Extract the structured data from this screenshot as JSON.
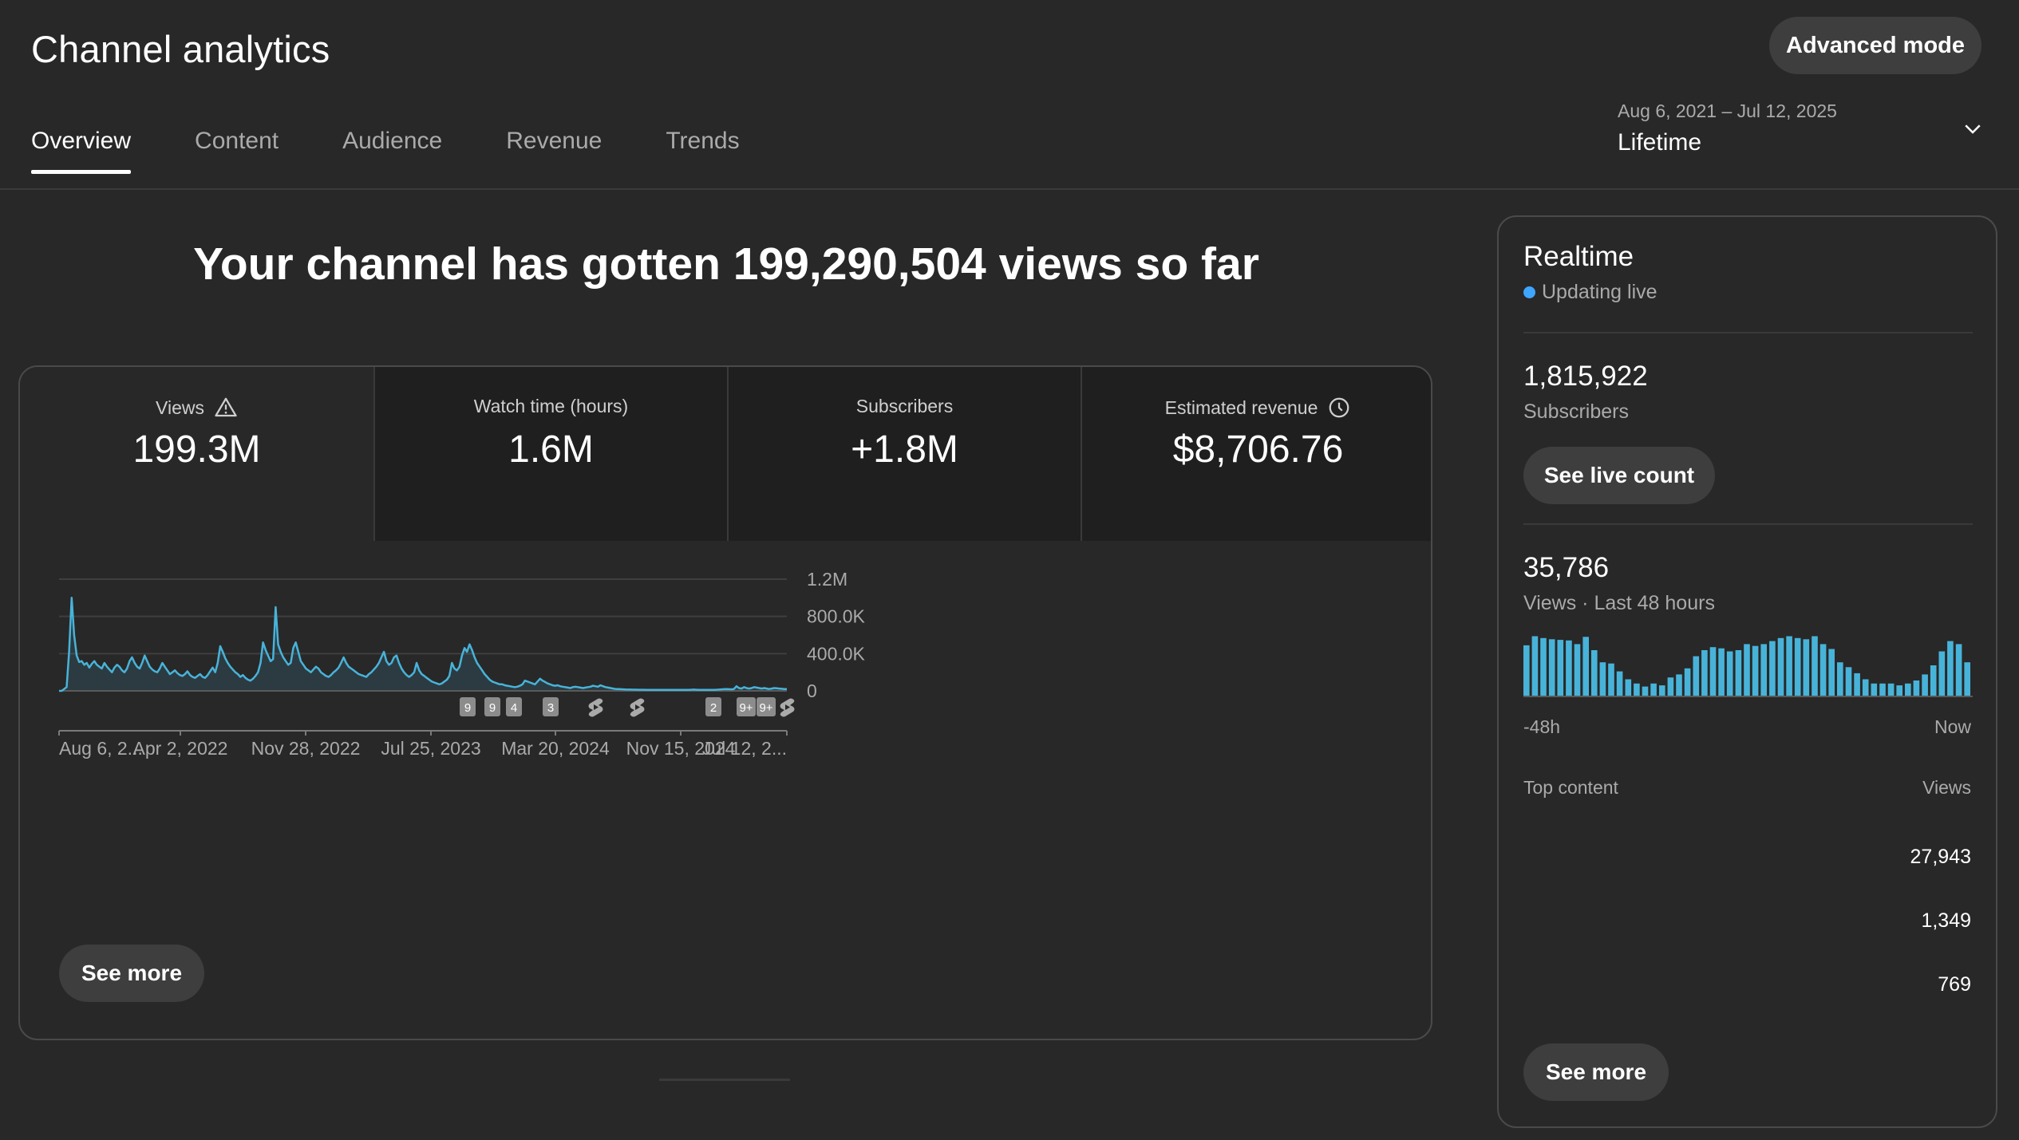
{
  "header": {
    "title": "Channel analytics",
    "advanced_mode_label": "Advanced mode"
  },
  "tabs": [
    {
      "label": "Overview",
      "active": true
    },
    {
      "label": "Content",
      "active": false
    },
    {
      "label": "Audience",
      "active": false
    },
    {
      "label": "Revenue",
      "active": false
    },
    {
      "label": "Trends",
      "active": false
    }
  ],
  "date_picker": {
    "range": "Aug 6, 2021 – Jul 12, 2025",
    "label": "Lifetime"
  },
  "headline": "Your channel has gotten 199,290,504 views so far",
  "metrics": [
    {
      "label": "Views",
      "value": "199.3M",
      "icon": "warning-icon"
    },
    {
      "label": "Watch time (hours)",
      "value": "1.6M"
    },
    {
      "label": "Subscribers",
      "value": "+1.8M"
    },
    {
      "label": "Estimated revenue",
      "value": "$8,706.76",
      "icon": "clock-icon"
    }
  ],
  "see_more_label": "See more",
  "colors": {
    "accent": "#3ea6ff",
    "series": "#48b3d9",
    "background": "#282828",
    "tile_inactive": "#1f1f1f",
    "button": "#3e3e3e"
  },
  "chart_data": {
    "type": "line",
    "title": "",
    "xlabel": "",
    "ylabel": "",
    "x_tick_labels": [
      "Aug 6, 2...",
      "Apr 2, 2022",
      "Nov 28, 2022",
      "Jul 25, 2023",
      "Mar 20, 2024",
      "Nov 15, 2024",
      "Jul 12, 2..."
    ],
    "y_tick_labels": [
      "0",
      "400.0K",
      "800.0K",
      "1.2M"
    ],
    "ylim": [
      0,
      1200000
    ],
    "grid": true,
    "series": [
      {
        "values": [
          0,
          0,
          20000,
          40000,
          420000,
          1000000,
          600000,
          380000,
          310000,
          320000,
          280000,
          300000,
          250000,
          290000,
          320000,
          280000,
          260000,
          240000,
          300000,
          260000,
          230000,
          200000,
          250000,
          280000,
          260000,
          220000,
          200000,
          240000,
          320000,
          360000,
          300000,
          260000,
          240000,
          300000,
          380000,
          320000,
          260000,
          230000,
          210000,
          200000,
          240000,
          300000,
          260000,
          220000,
          180000,
          200000,
          220000,
          190000,
          170000,
          160000,
          180000,
          210000,
          170000,
          150000,
          140000,
          160000,
          180000,
          150000,
          140000,
          170000,
          210000,
          250000,
          200000,
          300000,
          480000,
          420000,
          350000,
          300000,
          260000,
          230000,
          200000,
          180000,
          150000,
          170000,
          140000,
          120000,
          110000,
          130000,
          160000,
          200000,
          300000,
          520000,
          440000,
          380000,
          320000,
          340000,
          900000,
          500000,
          420000,
          360000,
          320000,
          280000,
          300000,
          460000,
          520000,
          420000,
          320000,
          280000,
          240000,
          220000,
          200000,
          230000,
          260000,
          240000,
          200000,
          180000,
          160000,
          150000,
          170000,
          200000,
          220000,
          250000,
          300000,
          360000,
          300000,
          260000,
          240000,
          220000,
          200000,
          180000,
          170000,
          160000,
          150000,
          180000,
          200000,
          230000,
          260000,
          300000,
          360000,
          420000,
          320000,
          280000,
          300000,
          360000,
          380000,
          300000,
          240000,
          200000,
          170000,
          150000,
          170000,
          200000,
          300000,
          220000,
          180000,
          160000,
          140000,
          120000,
          100000,
          90000,
          80000,
          70000,
          80000,
          100000,
          120000,
          160000,
          300000,
          240000,
          220000,
          260000,
          380000,
          460000,
          420000,
          500000,
          440000,
          360000,
          300000,
          260000,
          220000,
          180000,
          150000,
          120000,
          100000,
          90000,
          80000,
          70000,
          70000,
          60000,
          55000,
          50000,
          45000,
          40000,
          45000,
          55000,
          70000,
          110000,
          100000,
          90000,
          80000,
          70000,
          100000,
          130000,
          110000,
          95000,
          80000,
          70000,
          60000,
          55000,
          60000,
          50000,
          45000,
          40000,
          35000,
          30000,
          40000,
          45000,
          40000,
          35000,
          30000,
          35000,
          40000,
          45000,
          55000,
          50000,
          45000,
          60000,
          50000,
          40000,
          35000,
          30000,
          25000,
          20000,
          20000,
          18000,
          16000,
          15000,
          14000,
          14000,
          13000,
          13000,
          12000,
          12000,
          12000,
          11000,
          11000,
          10000,
          10000,
          10000,
          10000,
          10000,
          10000,
          10000,
          10000,
          10000,
          10000,
          10000,
          10000,
          10000,
          10000,
          10000,
          10000,
          12000,
          14000,
          12000,
          10000,
          10000,
          10000,
          10000,
          10000,
          10000,
          10000,
          12000,
          14000,
          16000,
          18000,
          20000,
          18000,
          16000,
          20000,
          50000,
          30000,
          25000,
          40000,
          30000,
          25000,
          30000,
          40000,
          35000,
          30000,
          25000,
          30000,
          25000,
          20000,
          25000,
          30000,
          28000,
          25000,
          22000,
          20000,
          20000
        ]
      }
    ],
    "markers": [
      "9",
      "9",
      "4",
      "3",
      "shorts-icon",
      "shorts-icon",
      "2",
      "9+",
      "9+",
      "shorts-icon"
    ]
  },
  "realtime": {
    "title": "Realtime",
    "live_label": "Updating live",
    "subscribers_value": "1,815,922",
    "subscribers_label": "Subscribers",
    "live_count_button": "See live count",
    "views_value": "35,786",
    "views_label": "Views · Last 48 hours",
    "axis_left": "-48h",
    "axis_right": "Now",
    "bars": [
      0.83,
      0.98,
      0.95,
      0.93,
      0.92,
      0.91,
      0.85,
      0.97,
      0.75,
      0.55,
      0.53,
      0.4,
      0.27,
      0.2,
      0.15,
      0.2,
      0.17,
      0.3,
      0.35,
      0.45,
      0.65,
      0.75,
      0.8,
      0.78,
      0.73,
      0.75,
      0.85,
      0.82,
      0.85,
      0.9,
      0.95,
      0.98,
      0.95,
      0.93,
      0.98,
      0.85,
      0.77,
      0.55,
      0.47,
      0.37,
      0.27,
      0.2,
      0.2,
      0.2,
      0.17,
      0.2,
      0.25,
      0.35,
      0.5,
      0.73,
      0.9,
      0.85,
      0.55
    ],
    "top_content_label": "Top content",
    "top_views_label": "Views",
    "top_rows": [
      "27,943",
      "1,349",
      "769"
    ],
    "see_more_label": "See more"
  }
}
